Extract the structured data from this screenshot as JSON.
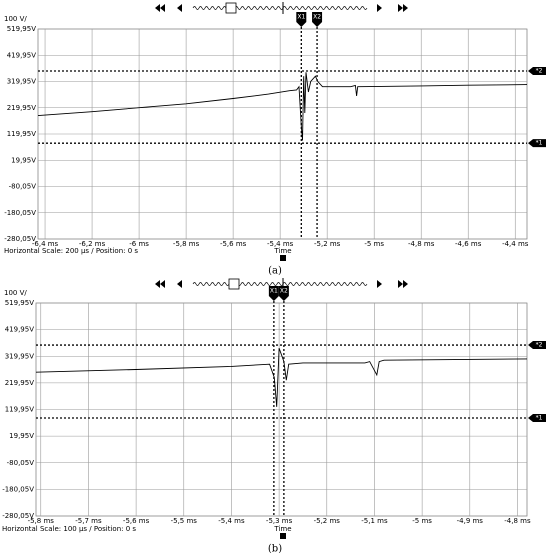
{
  "chart_data": [
    {
      "type": "line",
      "y_unit": "100 V/",
      "xlabel": "Time",
      "footer": "Horizontal Scale: 200 µs /  Position: 0 s",
      "caption": "(a)",
      "color": "#000000",
      "grid": true,
      "xlim": [
        -6.43,
        -4.35
      ],
      "ylim": [
        -280.05,
        519.95
      ],
      "xticks": [
        {
          "value": -6.4,
          "label": "-6,4 ms"
        },
        {
          "value": -6.2,
          "label": "-6,2 ms"
        },
        {
          "value": -6,
          "label": "-6 ms"
        },
        {
          "value": -5.8,
          "label": "-5,8 ms"
        },
        {
          "value": -5.6,
          "label": "-5,6 ms"
        },
        {
          "value": -5.4,
          "label": "-5,4 ms"
        },
        {
          "value": -5.2,
          "label": "-5,2 ms"
        },
        {
          "value": -5,
          "label": "-5 ms"
        },
        {
          "value": -4.8,
          "label": "-4,8 ms"
        },
        {
          "value": -4.6,
          "label": "-4,6 ms"
        },
        {
          "value": -4.4,
          "label": "-4,4 ms"
        }
      ],
      "yticks": [
        {
          "value": 519.95,
          "label": "519,95V"
        },
        {
          "value": 419.95,
          "label": "419,95V"
        },
        {
          "value": 319.95,
          "label": "319,95V"
        },
        {
          "value": 219.95,
          "label": "219,95V"
        },
        {
          "value": 119.95,
          "label": "119,95V"
        },
        {
          "value": 19.95,
          "label": "19,95V"
        },
        {
          "value": -80.05,
          "label": "-80,05V"
        },
        {
          "value": -180.05,
          "label": "-180,05V"
        },
        {
          "value": -280.05,
          "label": "-280,05V"
        }
      ],
      "x_cursors": [
        {
          "label": "X1",
          "value": -5.31
        },
        {
          "label": "X2",
          "value": -5.243
        }
      ],
      "y_cursors": [
        {
          "label": "*2",
          "value": 360
        },
        {
          "label": "*1",
          "value": 85
        }
      ],
      "x": [
        -6.43,
        -6.2,
        -6.0,
        -5.8,
        -5.6,
        -5.45,
        -5.36,
        -5.33,
        -5.32,
        -5.31,
        -5.305,
        -5.3,
        -5.295,
        -5.29,
        -5.28,
        -5.27,
        -5.25,
        -5.24,
        -5.22,
        -5.1,
        -5.08,
        -5.075,
        -5.07,
        -4.8,
        -4.6,
        -4.35
      ],
      "values": [
        190,
        205,
        220,
        235,
        255,
        272,
        285,
        288,
        300,
        150,
        95,
        340,
        200,
        355,
        280,
        320,
        340,
        320,
        300,
        300,
        305,
        265,
        300,
        303,
        306,
        308
      ]
    },
    {
      "type": "line",
      "y_unit": "100 V/",
      "xlabel": "Time",
      "footer": "Horizontal Scale: 100 µs /  Position: 0 s",
      "caption": "(b)",
      "color": "#000000",
      "grid": true,
      "xlim": [
        -5.81,
        -4.78
      ],
      "ylim": [
        -280.05,
        519.95
      ],
      "xticks": [
        {
          "value": -5.8,
          "label": "-5,8 ms"
        },
        {
          "value": -5.7,
          "label": "-5,7 ms"
        },
        {
          "value": -5.6,
          "label": "-5,6 ms"
        },
        {
          "value": -5.5,
          "label": "-5,5 ms"
        },
        {
          "value": -5.4,
          "label": "-5,4 ms"
        },
        {
          "value": -5.3,
          "label": "-5,3 ms"
        },
        {
          "value": -5.2,
          "label": "-5,2 ms"
        },
        {
          "value": -5.1,
          "label": "-5,1 ms"
        },
        {
          "value": -5,
          "label": "-5 ms"
        },
        {
          "value": -4.9,
          "label": "-4,9 ms"
        },
        {
          "value": -4.8,
          "label": "-4,8 ms"
        }
      ],
      "yticks": [
        {
          "value": 519.95,
          "label": "519,95V"
        },
        {
          "value": 419.95,
          "label": "419,95V"
        },
        {
          "value": 319.95,
          "label": "319,95V"
        },
        {
          "value": 219.95,
          "label": "219,95V"
        },
        {
          "value": 119.95,
          "label": "119,95V"
        },
        {
          "value": 19.95,
          "label": "19,95V"
        },
        {
          "value": -80.05,
          "label": "-80,05V"
        },
        {
          "value": -180.05,
          "label": "-180,05V"
        },
        {
          "value": -280.05,
          "label": "-280,05V"
        }
      ],
      "x_cursors": [
        {
          "label": "X1",
          "value": -5.311
        },
        {
          "label": "X2",
          "value": -5.29
        }
      ],
      "y_cursors": [
        {
          "label": "*2",
          "value": 362
        },
        {
          "label": "*1",
          "value": 88
        }
      ],
      "x": [
        -5.81,
        -5.6,
        -5.4,
        -5.32,
        -5.31,
        -5.305,
        -5.3,
        -5.29,
        -5.285,
        -5.28,
        -5.25,
        -5.12,
        -5.11,
        -5.095,
        -5.09,
        -5.08,
        -4.78
      ],
      "values": [
        260,
        270,
        282,
        290,
        240,
        130,
        350,
        300,
        230,
        290,
        295,
        295,
        300,
        250,
        300,
        305,
        310
      ]
    }
  ]
}
